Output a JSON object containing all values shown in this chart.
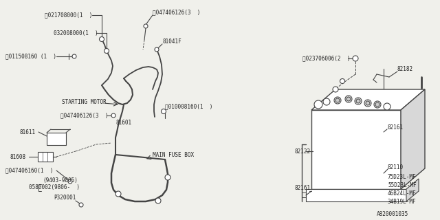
{
  "bg_color": "#f0f0eb",
  "line_color": "#444444",
  "text_color": "#222222",
  "fig_width": 6.4,
  "fig_height": 3.2,
  "footer": "A820001035",
  "labels": {
    "N021708000": "ⓝ021708000(1  )",
    "032008000": "032008000(1  )",
    "B011508160": "Ⓑ011508160 (1  )",
    "S047406126_top": "Ⓢ047406126(3  )",
    "81041F": "81041F",
    "STARTING_MOTOR": "STARTING MOTOR",
    "S047406126_mid": "Ⓢ047406126(3  )",
    "B010008160": "Ⓑ010008160(1  )",
    "81601": "81601",
    "81611": "81611",
    "81608": "81608",
    "MAIN_FUSE_BOX": "MAIN FUSE BOX",
    "S047406160": "Ⓢ047406160(1  )",
    "9403_9805": "(9403-9805)",
    "0580002": "0580002(9806-  )",
    "P320001": "P320001",
    "N023706006": "ⓝ023706006(2  )",
    "82182": "82182",
    "82161_top": "82161",
    "82122": "82122",
    "82161_bot": "82161",
    "82110": "82110",
    "75D23LMF": "75D23L-MF",
    "55D23LMF": "55D23L-MF",
    "46B24LMF": "46B24L-MF",
    "34B19LMF": "34B19L-MF"
  }
}
